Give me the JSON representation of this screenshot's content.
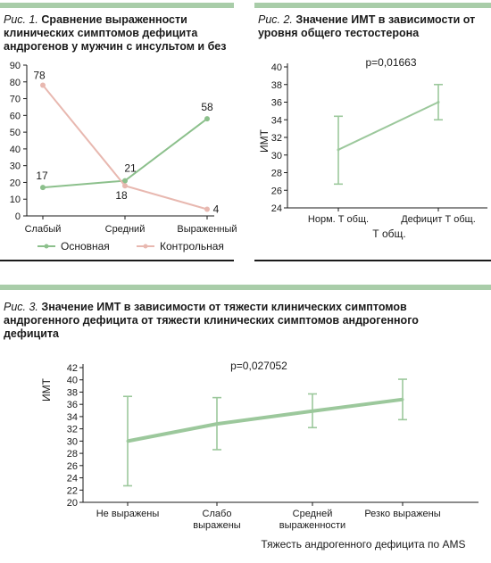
{
  "figures": [
    {
      "number": "Рис. 1.",
      "title": "Сравнение выраженности клинических симптомов дефицита андрогенов у мужчин с инсультом и без"
    },
    {
      "number": "Рис. 2.",
      "title": "Значение ИМТ в зависимости от уровня общего тестостерона"
    },
    {
      "number": "Рис. 3.",
      "title": "Значение ИМТ в зависимости от тяжести клинических симптомов андрогенного дефицита от тяжести клинических симптомов андрогенного дефицита"
    }
  ],
  "colors": {
    "accent_bar": "#a9cda9",
    "series_main": "#8cc08c",
    "series_control": "#e8b8b0",
    "axis": "#1a1a1a",
    "errorbar": "#9cc89c"
  },
  "chart_data": [
    {
      "type": "line",
      "categories": [
        "Слабый",
        "Средний",
        "Выраженный"
      ],
      "series": [
        {
          "name": "Основная",
          "values": [
            17,
            21,
            58
          ],
          "color": "#8cc08c"
        },
        {
          "name": "Контрольная",
          "values": [
            78,
            18,
            4
          ],
          "color": "#e8b8b0"
        }
      ],
      "ylim": [
        0,
        90
      ],
      "yticks": [
        0,
        10,
        20,
        30,
        40,
        50,
        60,
        70,
        80,
        90
      ],
      "legend": "bottom",
      "grid": false
    },
    {
      "type": "line",
      "categories": [
        "Норм. Т общ.",
        "Дефицит Т общ."
      ],
      "xlabel": "Т общ.",
      "ylabel": "ИМТ",
      "annotation": "p=0,01663",
      "values": [
        30.6,
        36.0
      ],
      "err_low": [
        26.7,
        34.0
      ],
      "err_high": [
        34.4,
        38.0
      ],
      "ylim": [
        24,
        40
      ],
      "yticks": [
        24,
        26,
        28,
        30,
        32,
        34,
        36,
        38,
        40
      ],
      "grid": false
    },
    {
      "type": "line",
      "categories": [
        "Не выражены",
        "Слабо выражены",
        "Средней выраженности",
        "Резко выражены"
      ],
      "xlabel": "Тяжесть андрогенного дефицита по AMS",
      "ylabel": "ИМТ",
      "annotation": "p=0,027052",
      "values": [
        30.0,
        32.8,
        34.9,
        36.8
      ],
      "err_low": [
        22.7,
        28.6,
        32.2,
        33.5
      ],
      "err_high": [
        37.3,
        37.1,
        37.7,
        40.1
      ],
      "ylim": [
        20,
        42
      ],
      "yticks": [
        20,
        22,
        24,
        26,
        28,
        30,
        32,
        34,
        36,
        38,
        40,
        42
      ],
      "grid": false
    }
  ]
}
